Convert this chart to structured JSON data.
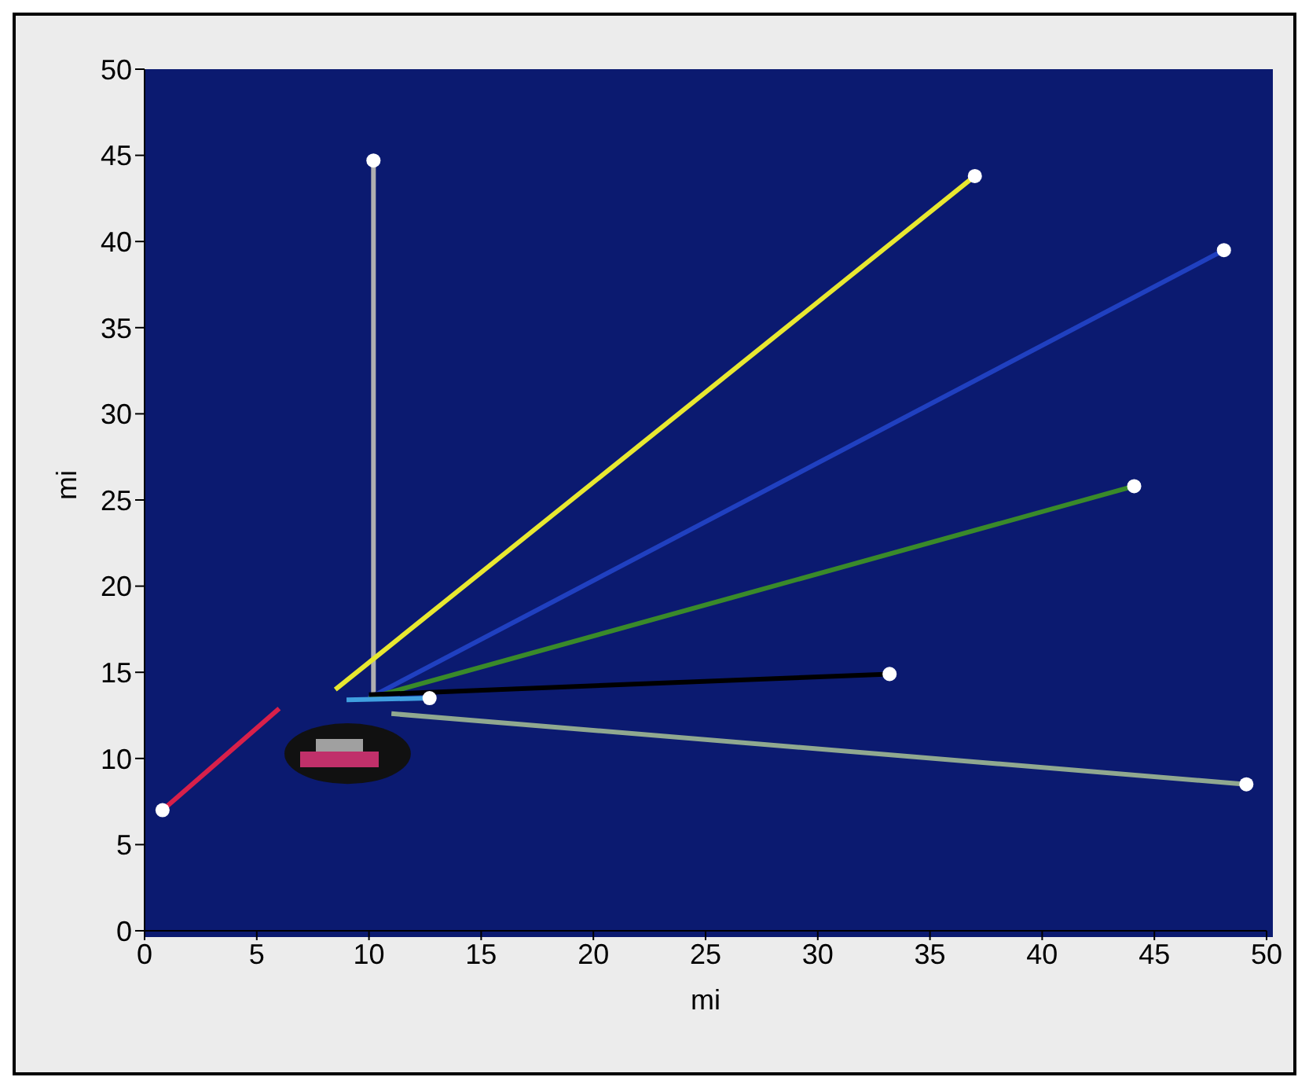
{
  "chart_data": {
    "type": "line",
    "xlabel": "mi",
    "ylabel": "mi",
    "xlim": [
      0,
      50
    ],
    "ylim": [
      0,
      50
    ],
    "xticks": [
      0,
      5,
      10,
      15,
      20,
      25,
      30,
      35,
      40,
      45,
      50
    ],
    "yticks": [
      0,
      5,
      10,
      15,
      20,
      25,
      30,
      35,
      40,
      45,
      50
    ],
    "grid": false,
    "line_style": "solid",
    "series": [
      {
        "color": "#d8204a",
        "x": [
          0.8,
          6.0
        ],
        "values": [
          7.0,
          12.9
        ]
      },
      {
        "color": "#b0b0b0",
        "x": [
          10.2,
          10.2
        ],
        "values": [
          13.5,
          44.7
        ]
      },
      {
        "color": "#e8e830",
        "x": [
          8.5,
          37.0
        ],
        "values": [
          14.0,
          43.8
        ]
      },
      {
        "color": "#2040c0",
        "x": [
          10.0,
          48.1
        ],
        "values": [
          13.5,
          39.5
        ]
      },
      {
        "color": "#3a8a2a",
        "x": [
          10.0,
          44.1
        ],
        "values": [
          13.5,
          25.8
        ]
      },
      {
        "color": "#000000",
        "x": [
          10.0,
          33.2
        ],
        "values": [
          13.7,
          14.9
        ]
      },
      {
        "color": "#40a0e0",
        "x": [
          9.0,
          12.7
        ],
        "values": [
          13.4,
          13.5
        ]
      },
      {
        "color": "#90a890",
        "x": [
          11.0,
          49.1
        ],
        "values": [
          12.6,
          8.5
        ]
      },
      {
        "type": "scatter",
        "color": "#ffffff",
        "x": [
          0.8,
          10.2,
          37.0,
          48.1,
          44.1,
          33.2,
          12.7,
          49.1
        ],
        "values": [
          7.0,
          44.7,
          43.8,
          39.5,
          25.8,
          14.9,
          13.5,
          8.5
        ]
      }
    ]
  }
}
